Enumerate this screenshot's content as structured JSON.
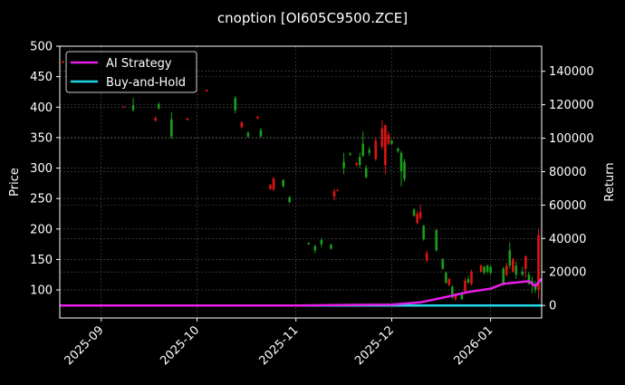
{
  "title": "cnoption [OI605C9500.ZCE]",
  "colors": {
    "background": "#000000",
    "ai_strategy": "#e81ee8",
    "buy_and_hold": "#22d8e8",
    "up_candle": "#1a9e1a",
    "down_candle": "#e01414",
    "grid": "#555555",
    "axes": "#ffffff"
  },
  "legend": {
    "items": [
      {
        "label": "AI Strategy",
        "color": "#e81ee8"
      },
      {
        "label": "Buy-and-Hold",
        "color": "#22d8e8"
      }
    ]
  },
  "chart_data": {
    "type": "candlestick+line",
    "title": "cnoption [OI605C9500.ZCE]",
    "xlabel": "",
    "ylabel_left": "Price",
    "ylabel_right": "Return",
    "x_ticks": [
      "2025-09",
      "2025-10",
      "2025-11",
      "2025-12",
      "2026-01"
    ],
    "y_left_ticks": [
      100,
      150,
      200,
      250,
      300,
      350,
      400,
      450,
      500
    ],
    "y_left_range": [
      54,
      500
    ],
    "y_right_ticks": [
      0,
      20000,
      40000,
      60000,
      80000,
      100000,
      120000,
      140000
    ],
    "y_right_range": [
      -7500,
      155000
    ],
    "x_range": [
      "2025-08-19",
      "2026-01-17"
    ],
    "grid": true,
    "legend_position": "upper left",
    "candles": [
      {
        "date": "2025-08-20",
        "open": 475,
        "close": 473,
        "high": 476,
        "low": 472,
        "dir": "down"
      },
      {
        "date": "2025-09-08",
        "open": 401,
        "close": 400,
        "high": 402,
        "low": 399,
        "dir": "down"
      },
      {
        "date": "2025-09-11",
        "open": 395,
        "close": 403,
        "high": 415,
        "low": 393,
        "dir": "up"
      },
      {
        "date": "2025-09-18",
        "open": 382,
        "close": 378,
        "high": 385,
        "low": 376,
        "dir": "down"
      },
      {
        "date": "2025-09-19",
        "open": 398,
        "close": 405,
        "high": 408,
        "low": 396,
        "dir": "up"
      },
      {
        "date": "2025-09-23",
        "open": 352,
        "close": 380,
        "high": 392,
        "low": 348,
        "dir": "up"
      },
      {
        "date": "2025-09-28",
        "open": 381,
        "close": 379,
        "high": 383,
        "low": 378,
        "dir": "down"
      },
      {
        "date": "2025-10-04",
        "open": 428,
        "close": 426,
        "high": 429,
        "low": 425,
        "dir": "down"
      },
      {
        "date": "2025-10-13",
        "open": 395,
        "close": 415,
        "high": 418,
        "low": 390,
        "dir": "up"
      },
      {
        "date": "2025-10-15",
        "open": 375,
        "close": 367,
        "high": 377,
        "low": 365,
        "dir": "down"
      },
      {
        "date": "2025-10-17",
        "open": 352,
        "close": 358,
        "high": 360,
        "low": 350,
        "dir": "up"
      },
      {
        "date": "2025-10-20",
        "open": 384,
        "close": 382,
        "high": 386,
        "low": 380,
        "dir": "down"
      },
      {
        "date": "2025-10-21",
        "open": 352,
        "close": 362,
        "high": 366,
        "low": 350,
        "dir": "up"
      },
      {
        "date": "2025-10-24",
        "open": 272,
        "close": 266,
        "high": 274,
        "low": 264,
        "dir": "down"
      },
      {
        "date": "2025-10-25",
        "open": 283,
        "close": 265,
        "high": 285,
        "low": 262,
        "dir": "down"
      },
      {
        "date": "2025-10-28",
        "open": 270,
        "close": 280,
        "high": 282,
        "low": 268,
        "dir": "up"
      },
      {
        "date": "2025-10-30",
        "open": 244,
        "close": 252,
        "high": 254,
        "low": 242,
        "dir": "up"
      },
      {
        "date": "2025-11-05",
        "open": 175,
        "close": 177,
        "high": 178,
        "low": 174,
        "dir": "up"
      },
      {
        "date": "2025-11-07",
        "open": 165,
        "close": 172,
        "high": 174,
        "low": 160,
        "dir": "up"
      },
      {
        "date": "2025-11-09",
        "open": 175,
        "close": 182,
        "high": 185,
        "low": 170,
        "dir": "up"
      },
      {
        "date": "2025-11-12",
        "open": 168,
        "close": 174,
        "high": 176,
        "low": 166,
        "dir": "up"
      },
      {
        "date": "2025-11-13",
        "open": 262,
        "close": 253,
        "high": 266,
        "low": 247,
        "dir": "down"
      },
      {
        "date": "2025-11-14",
        "open": 264,
        "close": 263,
        "high": 266,
        "low": 262,
        "dir": "down"
      },
      {
        "date": "2025-11-16",
        "open": 300,
        "close": 310,
        "high": 325,
        "low": 290,
        "dir": "up"
      },
      {
        "date": "2025-11-18",
        "open": 322,
        "close": 324,
        "high": 326,
        "low": 320,
        "dir": "up"
      },
      {
        "date": "2025-11-20",
        "open": 305,
        "close": 308,
        "high": 310,
        "low": 302,
        "dir": "down"
      },
      {
        "date": "2025-11-21",
        "open": 305,
        "close": 318,
        "high": 325,
        "low": 300,
        "dir": "up"
      },
      {
        "date": "2025-11-22",
        "open": 320,
        "close": 340,
        "high": 360,
        "low": 318,
        "dir": "up"
      },
      {
        "date": "2025-11-23",
        "open": 285,
        "close": 300,
        "high": 305,
        "low": 283,
        "dir": "up"
      },
      {
        "date": "2025-11-24",
        "open": 330,
        "close": 325,
        "high": 335,
        "low": 320,
        "dir": "up"
      },
      {
        "date": "2025-11-26",
        "open": 345,
        "close": 315,
        "high": 350,
        "low": 312,
        "dir": "down"
      },
      {
        "date": "2025-11-28",
        "open": 365,
        "close": 335,
        "high": 378,
        "low": 330,
        "dir": "down"
      },
      {
        "date": "2025-11-29",
        "open": 370,
        "close": 305,
        "high": 372,
        "low": 290,
        "dir": "down"
      },
      {
        "date": "2025-11-30",
        "open": 355,
        "close": 340,
        "high": 360,
        "low": 337,
        "dir": "down"
      },
      {
        "date": "2025-12-01",
        "open": 340,
        "close": 345,
        "high": 347,
        "low": 338,
        "dir": "up"
      },
      {
        "date": "2025-12-03",
        "open": 328,
        "close": 332,
        "high": 334,
        "low": 325,
        "dir": "up"
      },
      {
        "date": "2025-12-04",
        "open": 295,
        "close": 325,
        "high": 328,
        "low": 270,
        "dir": "up"
      },
      {
        "date": "2025-12-05",
        "open": 282,
        "close": 310,
        "high": 315,
        "low": 278,
        "dir": "up"
      },
      {
        "date": "2025-12-08",
        "open": 222,
        "close": 232,
        "high": 234,
        "low": 220,
        "dir": "up"
      },
      {
        "date": "2025-12-09",
        "open": 225,
        "close": 210,
        "high": 230,
        "low": 208,
        "dir": "down"
      },
      {
        "date": "2025-12-10",
        "open": 228,
        "close": 218,
        "high": 240,
        "low": 215,
        "dir": "down"
      },
      {
        "date": "2025-12-11",
        "open": 183,
        "close": 205,
        "high": 207,
        "low": 181,
        "dir": "up"
      },
      {
        "date": "2025-12-12",
        "open": 160,
        "close": 148,
        "high": 165,
        "low": 145,
        "dir": "down"
      },
      {
        "date": "2025-12-15",
        "open": 165,
        "close": 198,
        "high": 200,
        "low": 163,
        "dir": "up"
      },
      {
        "date": "2025-12-17",
        "open": 135,
        "close": 150,
        "high": 152,
        "low": 133,
        "dir": "up"
      },
      {
        "date": "2025-12-18",
        "open": 112,
        "close": 128,
        "high": 130,
        "low": 110,
        "dir": "up"
      },
      {
        "date": "2025-12-19",
        "open": 118,
        "close": 108,
        "high": 120,
        "low": 106,
        "dir": "down"
      },
      {
        "date": "2025-12-20",
        "open": 88,
        "close": 105,
        "high": 108,
        "low": 85,
        "dir": "up"
      },
      {
        "date": "2025-12-21",
        "open": 92,
        "close": 85,
        "high": 95,
        "low": 82,
        "dir": "down"
      },
      {
        "date": "2025-12-23",
        "open": 85,
        "close": 95,
        "high": 97,
        "low": 83,
        "dir": "up"
      },
      {
        "date": "2025-12-24",
        "open": 115,
        "close": 98,
        "high": 120,
        "low": 95,
        "dir": "down"
      },
      {
        "date": "2025-12-25",
        "open": 112,
        "close": 118,
        "high": 123,
        "low": 110,
        "dir": "up"
      },
      {
        "date": "2025-12-26",
        "open": 130,
        "close": 110,
        "high": 133,
        "low": 107,
        "dir": "down"
      },
      {
        "date": "2025-12-29",
        "open": 140,
        "close": 130,
        "high": 142,
        "low": 128,
        "dir": "down"
      },
      {
        "date": "2025-12-30",
        "open": 128,
        "close": 138,
        "high": 140,
        "low": 125,
        "dir": "up"
      },
      {
        "date": "2025-12-31",
        "open": 130,
        "close": 140,
        "high": 142,
        "low": 127,
        "dir": "up"
      },
      {
        "date": "2026-01-01",
        "open": 128,
        "close": 138,
        "high": 140,
        "low": 125,
        "dir": "up"
      },
      {
        "date": "2026-01-05",
        "open": 110,
        "close": 135,
        "high": 138,
        "low": 107,
        "dir": "up"
      },
      {
        "date": "2026-01-06",
        "open": 140,
        "close": 125,
        "high": 145,
        "low": 122,
        "dir": "down"
      },
      {
        "date": "2026-01-07",
        "open": 140,
        "close": 165,
        "high": 178,
        "low": 135,
        "dir": "up"
      },
      {
        "date": "2026-01-08",
        "open": 150,
        "close": 130,
        "high": 153,
        "low": 128,
        "dir": "down"
      },
      {
        "date": "2026-01-09",
        "open": 125,
        "close": 140,
        "high": 147,
        "low": 118,
        "dir": "up"
      },
      {
        "date": "2026-01-11",
        "open": 125,
        "close": 130,
        "high": 138,
        "low": 122,
        "dir": "up"
      },
      {
        "date": "2026-01-12",
        "open": 155,
        "close": 135,
        "high": 157,
        "low": 120,
        "dir": "down"
      },
      {
        "date": "2026-01-13",
        "open": 110,
        "close": 125,
        "high": 130,
        "low": 108,
        "dir": "up"
      },
      {
        "date": "2026-01-14",
        "open": 115,
        "close": 110,
        "high": 122,
        "low": 95,
        "dir": "up"
      },
      {
        "date": "2026-01-15",
        "open": 100,
        "close": 108,
        "high": 115,
        "low": 95,
        "dir": "up"
      },
      {
        "date": "2026-01-16",
        "open": 190,
        "close": 100,
        "high": 200,
        "low": 85,
        "dir": "down"
      }
    ],
    "series": [
      {
        "name": "AI Strategy",
        "axis": "right",
        "x": [
          "2025-08-19",
          "2025-11-01",
          "2025-12-01",
          "2025-12-10",
          "2025-12-18",
          "2025-12-25",
          "2026-01-01",
          "2026-01-05",
          "2026-01-08",
          "2026-01-13",
          "2026-01-15",
          "2026-01-17"
        ],
        "values": [
          0,
          0,
          500,
          1800,
          5000,
          8000,
          10000,
          13000,
          13500,
          14500,
          11500,
          16000
        ]
      },
      {
        "name": "Buy-and-Hold",
        "axis": "right",
        "x": [
          "2025-08-19",
          "2026-01-17"
        ],
        "values": [
          0,
          0
        ]
      }
    ]
  }
}
